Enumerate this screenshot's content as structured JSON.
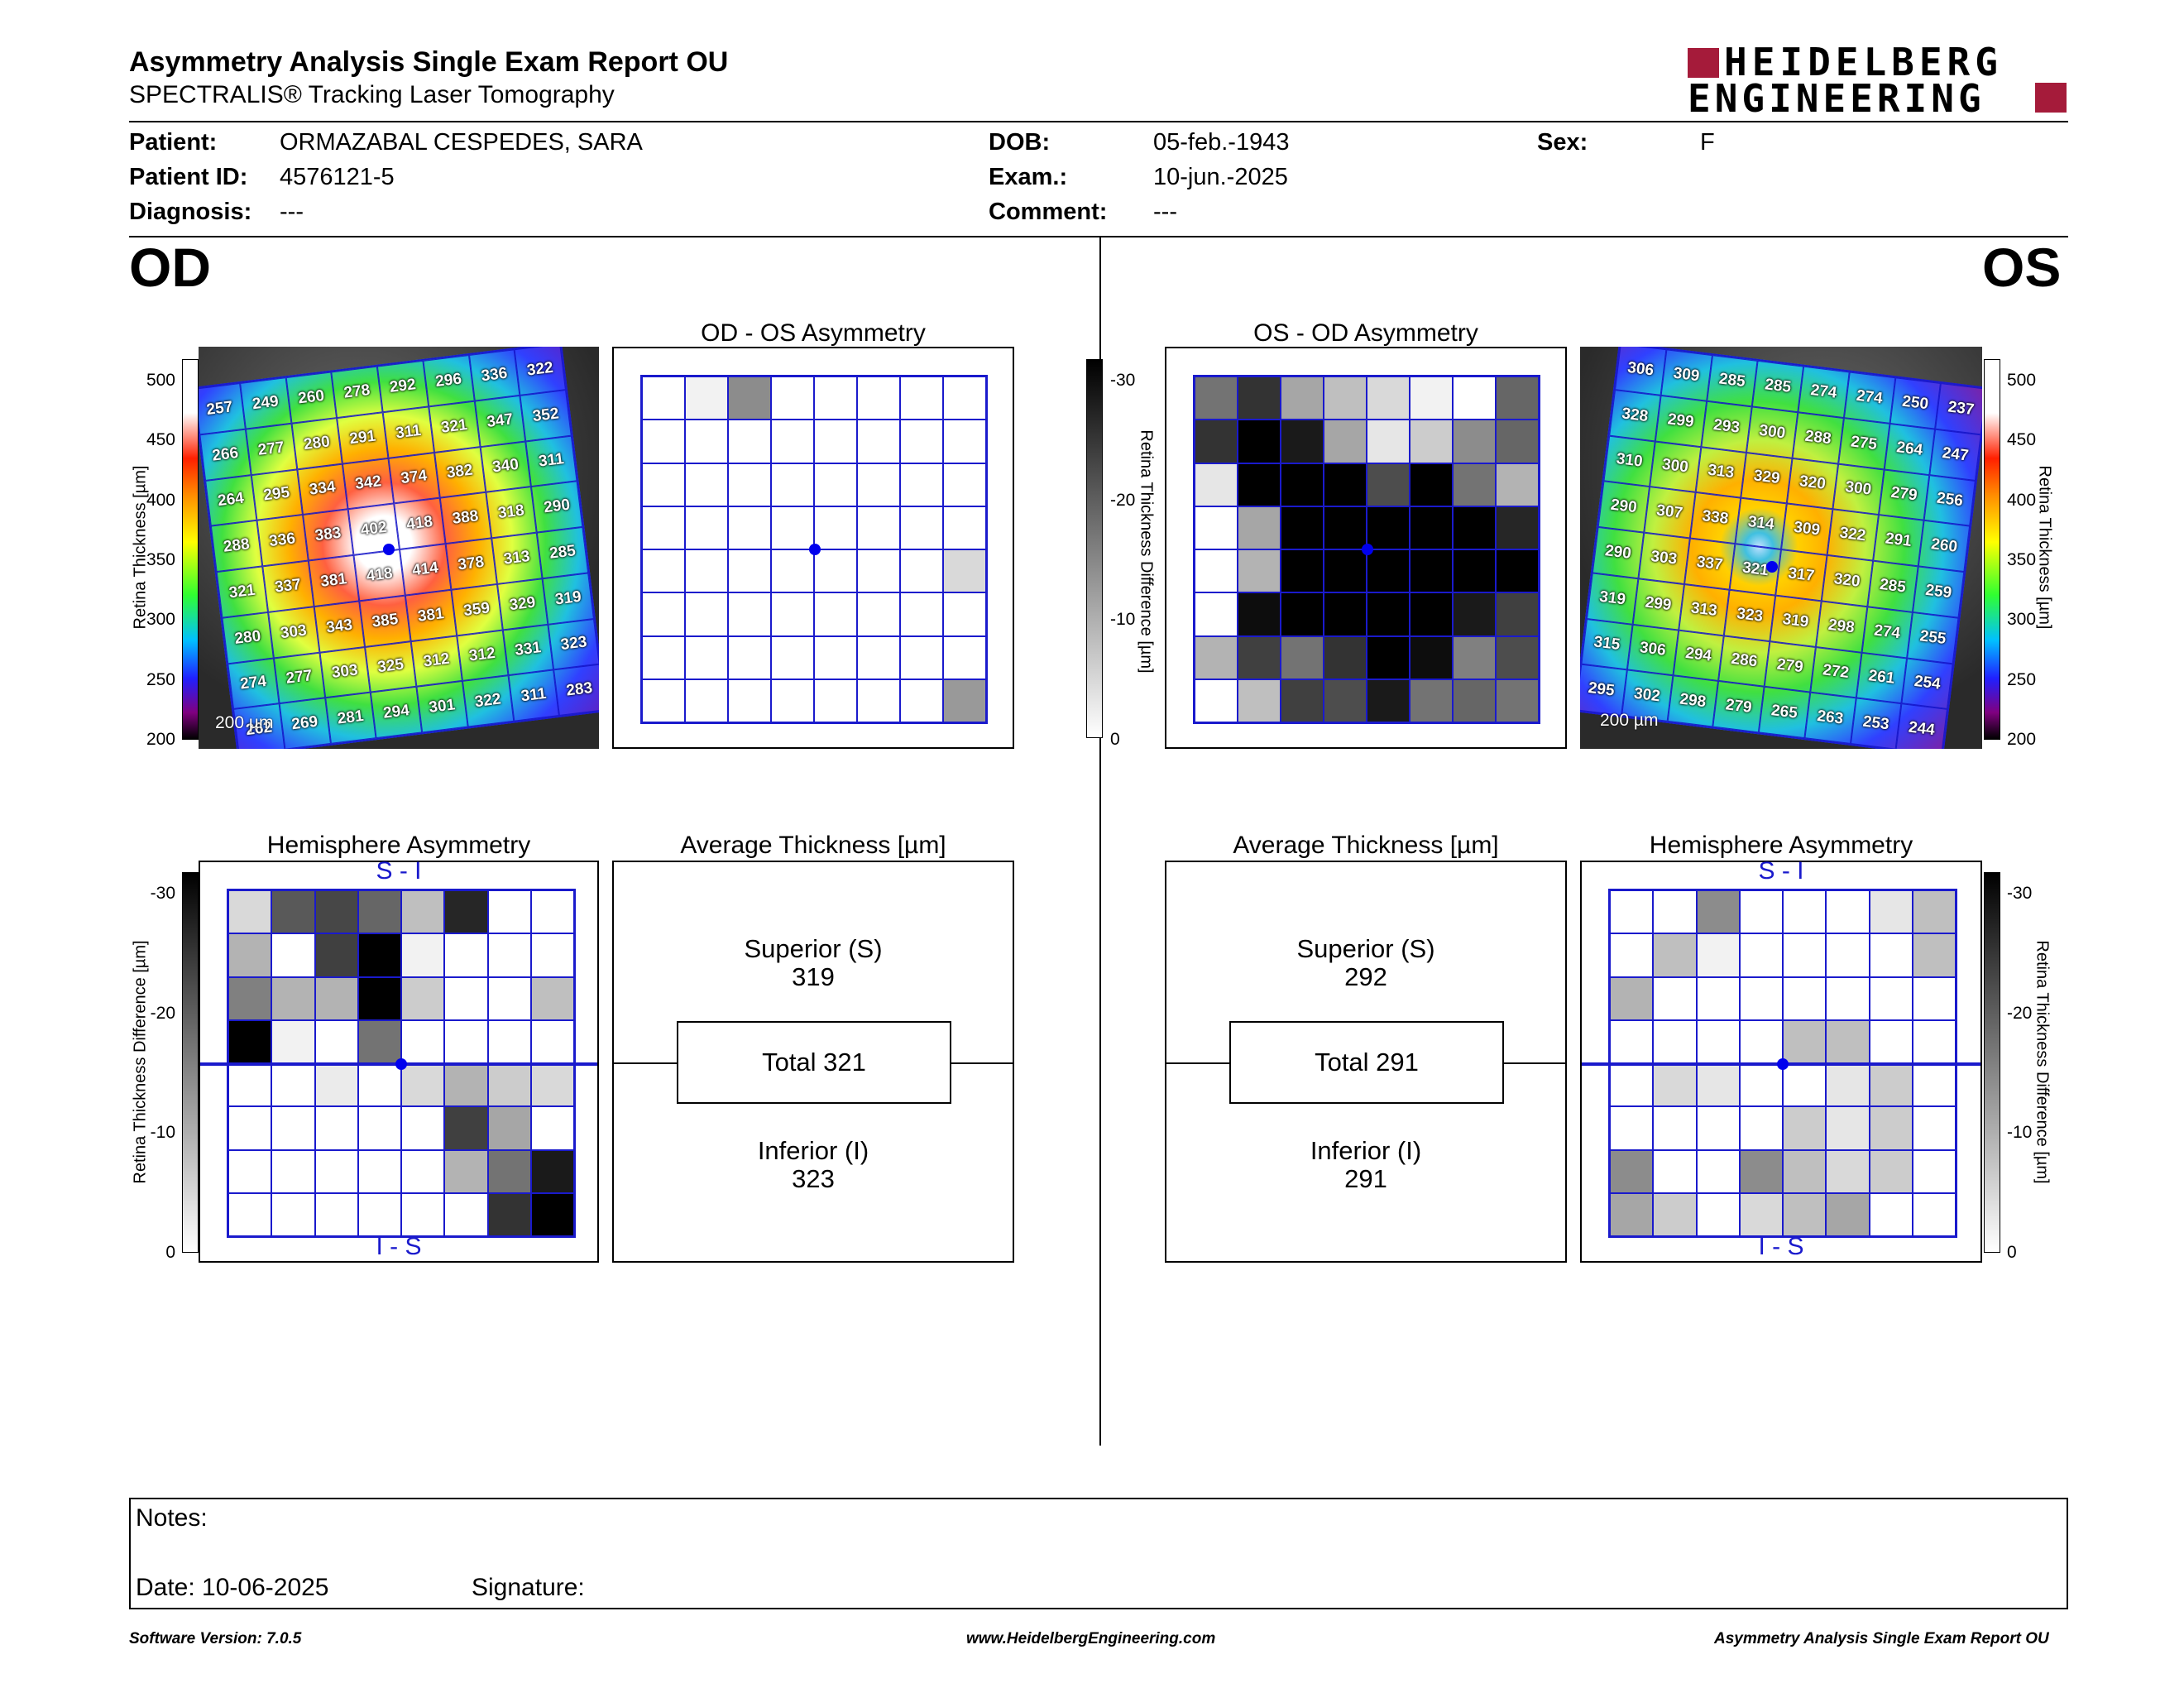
{
  "header": {
    "title": "Asymmetry Analysis Single Exam Report OU",
    "subtitle": "SPECTRALIS® Tracking Laser Tomography",
    "logo_line1": "HEIDELBERG",
    "logo_line2": "ENGINEERING",
    "colors": {
      "logo_red": "#a51b3a"
    }
  },
  "patient": {
    "patient_label": "Patient:",
    "patient_value": "ORMAZABAL CESPEDES, SARA",
    "id_label": "Patient ID:",
    "id_value": "4576121-5",
    "diagnosis_label": "Diagnosis:",
    "diagnosis_value": "---",
    "dob_label": "DOB:",
    "dob_value": "05-feb.-1943",
    "exam_label": "Exam.:",
    "exam_value": "10-jun.-2025",
    "comment_label": "Comment:",
    "comment_value": "---",
    "sex_label": "Sex:",
    "sex_value": "F"
  },
  "od": {
    "eye_label": "OD",
    "map_scale": "200 µm",
    "thickness_axis_label": "Retina  Thickness [µm]",
    "thickness_ticks": [
      "500",
      "450",
      "400",
      "350",
      "300",
      "250",
      "200"
    ],
    "thickness_grid": [
      [
        257,
        249,
        260,
        278,
        292,
        296,
        336,
        322
      ],
      [
        266,
        277,
        280,
        291,
        311,
        321,
        347,
        352
      ],
      [
        264,
        295,
        334,
        342,
        374,
        382,
        340,
        311
      ],
      [
        288,
        336,
        383,
        402,
        418,
        388,
        318,
        290
      ],
      [
        321,
        337,
        381,
        418,
        414,
        378,
        313,
        285
      ],
      [
        280,
        303,
        343,
        385,
        381,
        359,
        329,
        319
      ],
      [
        274,
        277,
        303,
        325,
        312,
        312,
        331,
        323
      ],
      [
        262,
        269,
        281,
        294,
        301,
        322,
        311,
        283
      ]
    ],
    "asym_title": "OD - OS Asymmetry",
    "asym_grid": [
      [
        0,
        5,
        45,
        0,
        0,
        0,
        0,
        0
      ],
      [
        0,
        0,
        0,
        0,
        0,
        0,
        0,
        0
      ],
      [
        0,
        0,
        0,
        0,
        0,
        0,
        0,
        0
      ],
      [
        0,
        0,
        0,
        0,
        0,
        0,
        0,
        0
      ],
      [
        0,
        0,
        0,
        0,
        0,
        0,
        0,
        15
      ],
      [
        0,
        0,
        0,
        0,
        0,
        0,
        0,
        0
      ],
      [
        0,
        0,
        0,
        0,
        0,
        0,
        0,
        0
      ],
      [
        0,
        0,
        0,
        0,
        0,
        0,
        0,
        40
      ]
    ],
    "hemi_title": "Hemisphere Asymmetry",
    "hemi_top": "S - I",
    "hemi_bottom": "I - S",
    "hemi_axis_label": "Retina Thickness Difference [µm]",
    "hemi_ticks": [
      "-30",
      "-20",
      "-10",
      "0"
    ],
    "hemi_grid": [
      [
        15,
        65,
        72,
        60,
        25,
        85,
        0,
        0
      ],
      [
        30,
        0,
        75,
        100,
        5,
        0,
        0,
        0
      ],
      [
        50,
        30,
        30,
        100,
        20,
        0,
        0,
        25
      ],
      [
        100,
        5,
        0,
        55,
        0,
        0,
        0,
        0
      ],
      [
        0,
        0,
        8,
        0,
        15,
        30,
        20,
        15
      ],
      [
        0,
        0,
        0,
        0,
        0,
        75,
        35,
        0
      ],
      [
        0,
        0,
        0,
        0,
        0,
        30,
        55,
        90
      ],
      [
        0,
        0,
        0,
        0,
        0,
        0,
        80,
        100
      ]
    ],
    "avg_title": "Average Thickness [µm]",
    "superior_label": "Superior (S)",
    "superior_value": "319",
    "total_label": "Total 321",
    "inferior_label": "Inferior (I)",
    "inferior_value": "323"
  },
  "center_bar": {
    "axis_label": "Retina Thickness Difference [µm]",
    "ticks": [
      "-30",
      "-20",
      "-10",
      "0"
    ]
  },
  "os": {
    "eye_label": "OS",
    "map_scale": "200 µm",
    "thickness_axis_label": "Retina  Thickness [µm]",
    "thickness_ticks": [
      "500",
      "450",
      "400",
      "350",
      "300",
      "250",
      "200"
    ],
    "thickness_grid": [
      [
        306,
        309,
        285,
        285,
        274,
        274,
        250,
        237
      ],
      [
        328,
        299,
        293,
        300,
        288,
        275,
        264,
        247
      ],
      [
        310,
        300,
        313,
        329,
        320,
        300,
        279,
        256
      ],
      [
        290,
        307,
        338,
        314,
        309,
        322,
        291,
        260
      ],
      [
        290,
        303,
        337,
        321,
        317,
        320,
        285,
        259
      ],
      [
        319,
        299,
        313,
        323,
        319,
        298,
        274,
        255
      ],
      [
        315,
        306,
        294,
        286,
        279,
        272,
        261,
        254
      ],
      [
        295,
        302,
        298,
        279,
        265,
        263,
        253,
        244
      ]
    ],
    "asym_title": "OS - OD Asymmetry",
    "asym_grid": [
      [
        55,
        80,
        35,
        25,
        15,
        5,
        0,
        60
      ],
      [
        80,
        100,
        90,
        35,
        10,
        20,
        45,
        60
      ],
      [
        10,
        100,
        100,
        100,
        70,
        100,
        55,
        30
      ],
      [
        0,
        35,
        100,
        100,
        100,
        100,
        100,
        85
      ],
      [
        0,
        30,
        100,
        100,
        100,
        100,
        100,
        100
      ],
      [
        0,
        95,
        100,
        100,
        100,
        100,
        90,
        75
      ],
      [
        30,
        75,
        55,
        80,
        100,
        95,
        50,
        70
      ],
      [
        0,
        25,
        75,
        70,
        90,
        55,
        60,
        55
      ]
    ],
    "hemi_title": "Hemisphere Asymmetry",
    "hemi_top": "S - I",
    "hemi_bottom": "I - S",
    "hemi_axis_label": "Retina Thickness Difference [µm]",
    "hemi_ticks": [
      "-30",
      "-20",
      "-10",
      "0"
    ],
    "hemi_grid": [
      [
        0,
        0,
        45,
        0,
        0,
        0,
        10,
        25
      ],
      [
        0,
        25,
        5,
        0,
        0,
        0,
        0,
        25
      ],
      [
        30,
        0,
        0,
        0,
        0,
        0,
        0,
        0
      ],
      [
        0,
        0,
        0,
        0,
        25,
        25,
        0,
        0
      ],
      [
        0,
        15,
        10,
        0,
        0,
        10,
        20,
        0
      ],
      [
        0,
        0,
        0,
        0,
        20,
        10,
        20,
        0
      ],
      [
        45,
        0,
        0,
        45,
        25,
        15,
        20,
        0
      ],
      [
        35,
        20,
        0,
        15,
        25,
        35,
        0,
        0
      ]
    ],
    "avg_title": "Average Thickness [µm]",
    "superior_label": "Superior (S)",
    "superior_value": "292",
    "total_label": "Total 291",
    "inferior_label": "Inferior (I)",
    "inferior_value": "291"
  },
  "notes": {
    "notes_label": "Notes:",
    "date_label": "Date: 10-06-2025",
    "signature_label": "Signature:"
  },
  "footer": {
    "software": "Software Version: 7.0.5",
    "website": "www.HeidelbergEngineering.com",
    "report": "Asymmetry Analysis Single Exam Report OU"
  }
}
